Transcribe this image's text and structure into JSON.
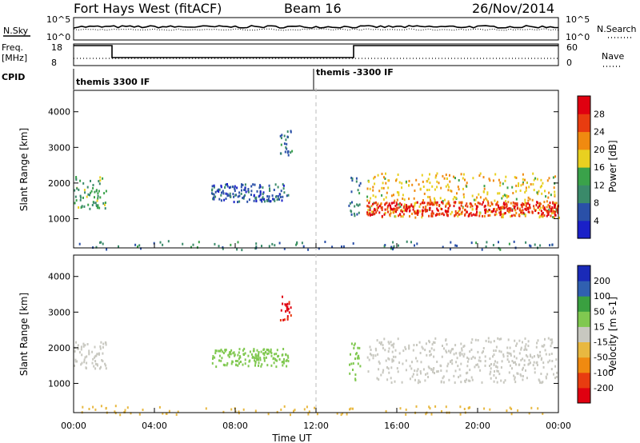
{
  "header": {
    "title": "Fort Hays West (fitACF)",
    "beam": "Beam 16",
    "date": "26/Nov/2014"
  },
  "panels": {
    "nsky_label": "N.Sky",
    "nsearch_label": "N.Search",
    "freq_label_1": "Freq.",
    "freq_label_2": "[MHz]",
    "nave_label": "Nave",
    "cpid_label": "CPID",
    "nsky_ticks": [
      "10^5",
      "10^0"
    ],
    "nsearch_ticks": [
      "10^5",
      "10^0"
    ],
    "freq_ticks": [
      "18",
      "8"
    ],
    "nave_ticks": [
      "60",
      "0"
    ],
    "cpid_left": "themis 3300 IF",
    "cpid_right": "themis -3300 IF"
  },
  "colors": {
    "power": [
      "#1a20c8",
      "#2a50a8",
      "#3a8a6a",
      "#3aa24a",
      "#e8d020",
      "#f08a10",
      "#e83c10",
      "#e00010"
    ],
    "velocity": [
      "#1a2ab8",
      "#3060b0",
      "#3aa040",
      "#80c850",
      "#c8c8c0",
      "#e8b840",
      "#f08a10",
      "#e83c10",
      "#e00010"
    ],
    "ground_grey": "#c8c8c0"
  },
  "chart_data": [
    {
      "type": "heatmap",
      "name": "power",
      "ylabel": "Slant Range [km]",
      "yticks": [
        1000,
        2000,
        3000,
        4000
      ],
      "ylim": [
        180,
        4600
      ],
      "colorbar_label": "Power [dB]",
      "colorbar_ticks": [
        "4",
        "8",
        "12",
        "16",
        "20",
        "24",
        "28"
      ],
      "colorbar_range": [
        0,
        30
      ],
      "echo_regions": [
        {
          "t_start": 0.0,
          "t_end": 1.6,
          "r_low": 1300,
          "r_high": 2200,
          "level": 12
        },
        {
          "t_start": 6.8,
          "t_end": 10.6,
          "r_low": 1500,
          "r_high": 2000,
          "level": 6
        },
        {
          "t_start": 10.2,
          "t_end": 10.8,
          "r_low": 2800,
          "r_high": 3500,
          "level": 8
        },
        {
          "t_start": 13.6,
          "t_end": 14.2,
          "r_low": 1100,
          "r_high": 2200,
          "level": 8
        },
        {
          "t_start": 14.5,
          "t_end": 24.0,
          "r_low": 1050,
          "r_high": 2300,
          "level": 18
        },
        {
          "t_start": 14.5,
          "t_end": 24.0,
          "r_low": 1100,
          "r_high": 1500,
          "level": 26
        }
      ]
    },
    {
      "type": "heatmap",
      "name": "velocity",
      "ylabel": "Slant Range [km]",
      "yticks": [
        1000,
        2000,
        3000,
        4000
      ],
      "ylim": [
        180,
        4600
      ],
      "colorbar_label": "Velocity [m s-1]",
      "colorbar_ticks": [
        "200",
        "100",
        "50",
        "15",
        "-15",
        "-50",
        "-100",
        "-200"
      ],
      "colorbar_range": [
        -250,
        250
      ],
      "echo_regions": [
        {
          "t_start": 0.0,
          "t_end": 1.6,
          "r_low": 1400,
          "r_high": 2200,
          "level": 0
        },
        {
          "t_start": 6.8,
          "t_end": 10.6,
          "r_low": 1500,
          "r_high": 2000,
          "level": 50
        },
        {
          "t_start": 10.2,
          "t_end": 10.8,
          "r_low": 2800,
          "r_high": 3500,
          "level": -200
        },
        {
          "t_start": 13.6,
          "t_end": 14.2,
          "r_low": 1100,
          "r_high": 2200,
          "level": 50
        },
        {
          "t_start": 14.5,
          "t_end": 24.0,
          "r_low": 1050,
          "r_high": 2300,
          "level": 0
        }
      ]
    }
  ],
  "xaxis": {
    "label": "Time UT",
    "ticks": [
      "00:00",
      "04:00",
      "08:00",
      "12:00",
      "16:00",
      "20:00",
      "00:00"
    ],
    "range_hours": [
      0,
      24
    ],
    "marker_hour": 12
  }
}
